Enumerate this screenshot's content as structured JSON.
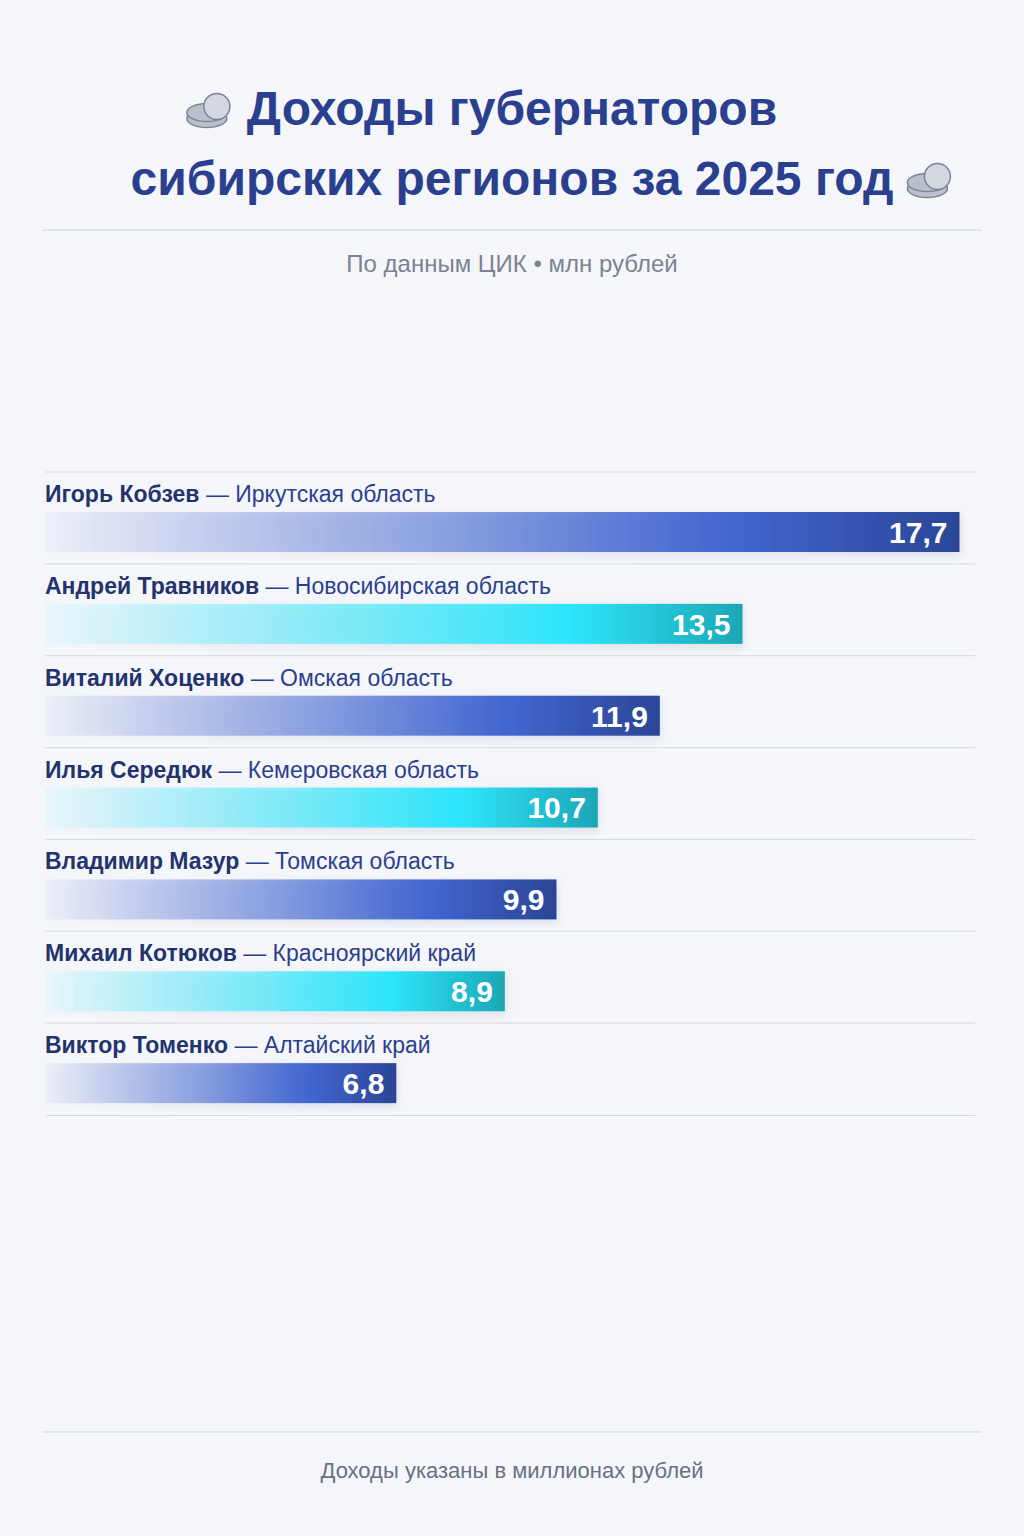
{
  "chart_data": {
    "type": "bar",
    "orientation": "horizontal",
    "title": "Доходы губернаторов\nсибирских регионов за 2025 год",
    "subtitle": "По данным ЦИК • млн рублей",
    "annotations": [
      "Доходы указаны в миллионах рублей"
    ],
    "categories": [
      "Игорь Кобзев — Иркутская область",
      "Андрей Травников — Новосибирская область",
      "Виталий Хоценко — Омская область",
      "Илья Середюк — Кемеровская область",
      "Владимир Мазур — Томская область",
      "Михаил Котюков — Красноярский край",
      "Виктор Томенко — Алтайский край"
    ],
    "values": [
      17.7,
      13.5,
      11.9,
      10.7,
      9.9,
      8.9,
      6.8
    ],
    "value_labels": [
      "17,7",
      "13,5",
      "11,9",
      "10,7",
      "9,9",
      "8,9",
      "6,8"
    ],
    "colors": [
      "#2a4596",
      "#1aa6b6",
      "#2a4596",
      "#1aa6b6",
      "#2a4596",
      "#1aa6b6",
      "#2a4596"
    ],
    "data_labels": true,
    "tick_labels": false,
    "grid": false,
    "xlim": [
      0,
      18
    ]
  }
}
